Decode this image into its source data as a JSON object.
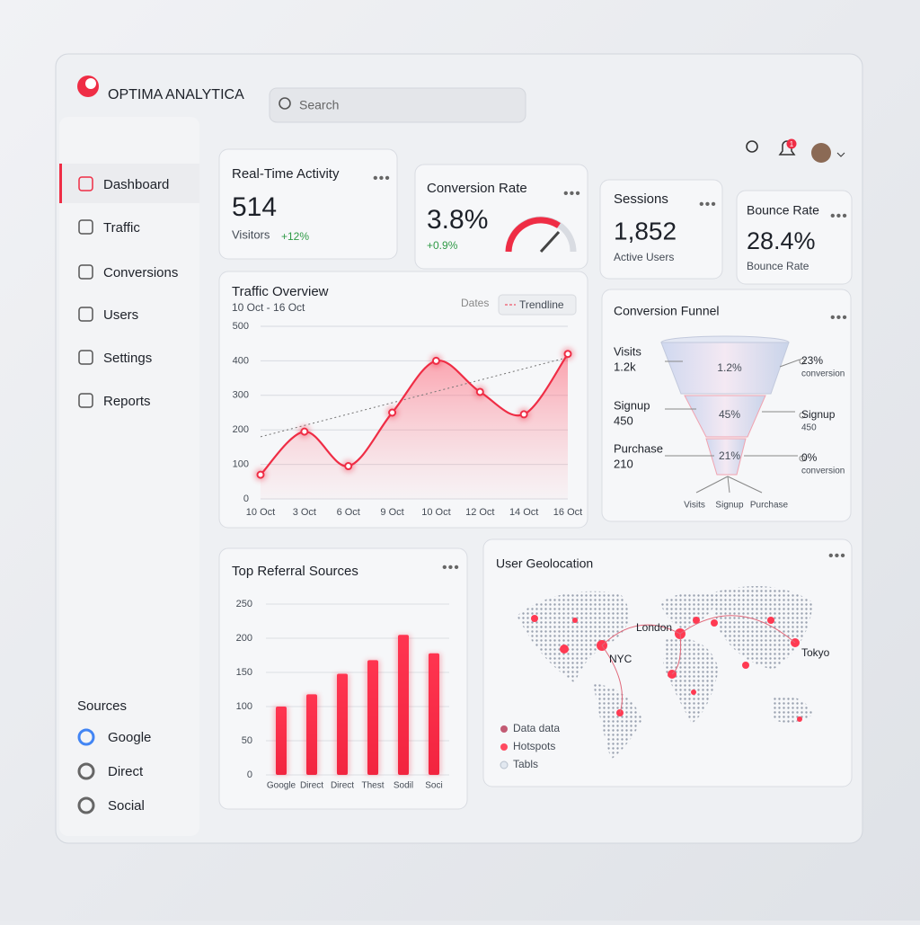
{
  "header": {
    "brand": "OPTIMA ANALYTICA",
    "search": "Search",
    "notifications": "1"
  },
  "nav": [
    "Dashboard",
    "Traffic",
    "Conversions",
    "Users",
    "Settings",
    "Reports"
  ],
  "sources": {
    "title": "Sources",
    "items": [
      "Google",
      "Direct",
      "Social"
    ]
  },
  "kpis": [
    {
      "title": "Real-Time Activity",
      "value": "514",
      "label": "Visitors",
      "change": "+12%"
    },
    {
      "title": "Conversion Rate",
      "value": "3.8%",
      "change": "+0.9%"
    },
    {
      "title": "Sessions",
      "value": "1,852",
      "label": "Active Users"
    },
    {
      "title": "Bounce Rate",
      "value": "28.4%",
      "label": "Bounce Rate"
    }
  ],
  "chart_data": [
    {
      "type": "line",
      "title": "Traffic Overview",
      "subtitle": "10 Oct - 16 Oct",
      "controls": [
        "Dates",
        "Trendline"
      ],
      "categories": [
        "10 Oct",
        "3 Oct",
        "6 Oct",
        "9 Oct",
        "10 Oct",
        "12 Oct",
        "14 Oct",
        "16 Oct"
      ],
      "values": [
        70,
        195,
        95,
        250,
        400,
        310,
        245,
        420
      ],
      "trendline": [
        180,
        410
      ],
      "color": "#ef2d45",
      "ylim": [
        0,
        500
      ],
      "yticks": [
        0,
        100,
        200,
        300,
        400,
        500
      ],
      "grid": true
    },
    {
      "type": "bar",
      "title": "Top Referral Sources",
      "categories": [
        "Google",
        "Direct",
        "Direct",
        "Thest",
        "Sodil",
        "Soci"
      ],
      "values": [
        100,
        118,
        148,
        168,
        205,
        178
      ],
      "color": "#ef2d45",
      "ylim": [
        0,
        250
      ],
      "yticks": [
        0,
        50,
        100,
        150,
        200,
        250
      ],
      "grid": true
    }
  ],
  "funnel": {
    "title": "Conversion Funnel",
    "stages": [
      {
        "name": "Visits",
        "value": "1.2k"
      },
      {
        "name": "Signup",
        "value": "450"
      },
      {
        "name": "Purchase",
        "value": "210"
      }
    ],
    "inner": [
      "1.2%",
      "45%",
      "21%"
    ],
    "right": [
      {
        "value": "23%",
        "label": "conversion"
      },
      {
        "value": "Signup",
        "label": "450"
      },
      {
        "value": "0%",
        "label": "conversion"
      }
    ],
    "bottom": [
      "Visits",
      "Signup",
      "Purchase"
    ]
  },
  "geo": {
    "title": "User Geolocation",
    "cities": [
      "London",
      "NYC",
      "Tokyo"
    ],
    "legend": [
      "Data data",
      "Hotspots",
      "Tabls"
    ]
  }
}
